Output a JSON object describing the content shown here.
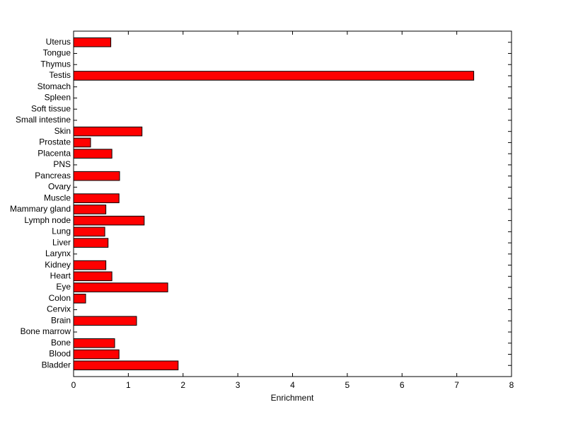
{
  "chart_data": {
    "type": "hbar",
    "xlabel": "Enrichment",
    "categories": [
      "Bladder",
      "Blood",
      "Bone",
      "Bone marrow",
      "Brain",
      "Cervix",
      "Colon",
      "Eye",
      "Heart",
      "Kidney",
      "Larynx",
      "Liver",
      "Lung",
      "Lymph node",
      "Mammary gland",
      "Muscle",
      "Ovary",
      "Pancreas",
      "PNS",
      "Placenta",
      "Prostate",
      "Skin",
      "Small intestine",
      "Soft tissue",
      "Spleen",
      "Stomach",
      "Testis",
      "Thymus",
      "Tongue",
      "Uterus"
    ],
    "values": [
      1.91,
      0.83,
      0.75,
      0,
      1.15,
      0,
      0.22,
      1.72,
      0.7,
      0.59,
      0,
      0.63,
      0.57,
      1.29,
      0.59,
      0.83,
      0,
      0.84,
      0,
      0.7,
      0.31,
      1.25,
      0,
      0,
      0,
      0,
      7.31,
      0,
      0,
      0.68
    ],
    "color": "#ff0000",
    "xlim": [
      0,
      8
    ],
    "xticks": [
      0,
      1,
      2,
      3,
      4,
      5,
      6,
      7,
      8
    ]
  }
}
